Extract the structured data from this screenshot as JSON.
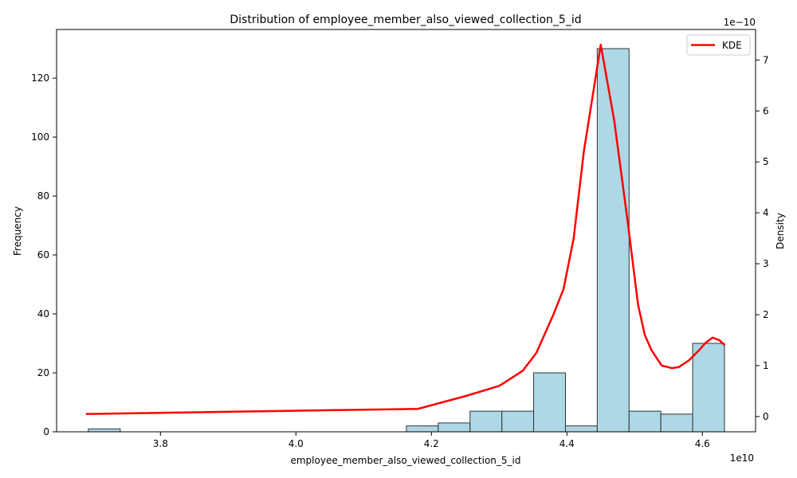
{
  "chart_data": {
    "type": "bar",
    "title": "Distribution of employee_member_also_viewed_collection_5_id",
    "xlabel": "employee_member_also_viewed_collection_5_id",
    "ylabel": "Frequency",
    "y2label": "Density",
    "x_offset_text": "1e10",
    "y2_offset_text": "1e−10",
    "xlim": [
      3.6467,
      4.6785
    ],
    "ylim": [
      0,
      136.5
    ],
    "y2lim": [
      -0.3,
      7.6
    ],
    "x_ticks": [
      3.8,
      4.0,
      4.2,
      4.4,
      4.6
    ],
    "x_tick_labels": [
      "3.8",
      "4.0",
      "4.2",
      "4.4",
      "4.6"
    ],
    "y_ticks": [
      0,
      20,
      40,
      60,
      80,
      100,
      120
    ],
    "y_tick_labels": [
      "0",
      "20",
      "40",
      "60",
      "80",
      "100",
      "120"
    ],
    "y2_ticks": [
      0,
      1,
      2,
      3,
      4,
      5,
      6,
      7
    ],
    "y2_tick_labels": [
      "0",
      "1",
      "2",
      "3",
      "4",
      "5",
      "6",
      "7"
    ],
    "bar_color": "#add8e6",
    "bar_edge_color": "#333333",
    "kde_color": "#ff0000",
    "grid": false,
    "legend_position": "upper right",
    "series": [
      {
        "kind": "histogram",
        "bins": [
          {
            "start": 3.6936,
            "end": 3.7406,
            "count": 1
          },
          {
            "start": 3.7406,
            "end": 3.7875,
            "count": 0
          },
          {
            "start": 3.7875,
            "end": 3.8345,
            "count": 0
          },
          {
            "start": 3.8345,
            "end": 3.8814,
            "count": 0
          },
          {
            "start": 3.8814,
            "end": 3.9284,
            "count": 0
          },
          {
            "start": 3.9284,
            "end": 3.9753,
            "count": 0
          },
          {
            "start": 3.9753,
            "end": 4.0223,
            "count": 0
          },
          {
            "start": 4.0223,
            "end": 4.0692,
            "count": 0
          },
          {
            "start": 4.0692,
            "end": 4.1162,
            "count": 0
          },
          {
            "start": 4.1162,
            "end": 4.1631,
            "count": 0
          },
          {
            "start": 4.1631,
            "end": 4.2101,
            "count": 2
          },
          {
            "start": 4.2101,
            "end": 4.257,
            "count": 3
          },
          {
            "start": 4.257,
            "end": 4.304,
            "count": 7
          },
          {
            "start": 4.304,
            "end": 4.3509,
            "count": 7
          },
          {
            "start": 4.3509,
            "end": 4.3979,
            "count": 20
          },
          {
            "start": 4.3979,
            "end": 4.4448,
            "count": 2
          },
          {
            "start": 4.4448,
            "end": 4.4918,
            "count": 130
          },
          {
            "start": 4.4918,
            "end": 4.5387,
            "count": 7
          },
          {
            "start": 4.5387,
            "end": 4.5857,
            "count": 6
          },
          {
            "start": 4.5857,
            "end": 4.6326,
            "count": 30
          }
        ]
      },
      {
        "kind": "line",
        "name": "KDE",
        "x": [
          3.69,
          4.18,
          4.25,
          4.3,
          4.335,
          4.355,
          4.38,
          4.395,
          4.41,
          4.425,
          4.45,
          4.47,
          4.49,
          4.505,
          4.515,
          4.525,
          4.54,
          4.555,
          4.565,
          4.58,
          4.595,
          4.605,
          4.615,
          4.625,
          4.633
        ],
        "y": [
          0.05,
          0.15,
          0.4,
          0.6,
          0.9,
          1.25,
          2.0,
          2.5,
          3.5,
          5.2,
          7.3,
          5.8,
          3.8,
          2.2,
          1.6,
          1.3,
          1.0,
          0.95,
          0.97,
          1.1,
          1.3,
          1.45,
          1.55,
          1.5,
          1.4
        ]
      }
    ]
  }
}
